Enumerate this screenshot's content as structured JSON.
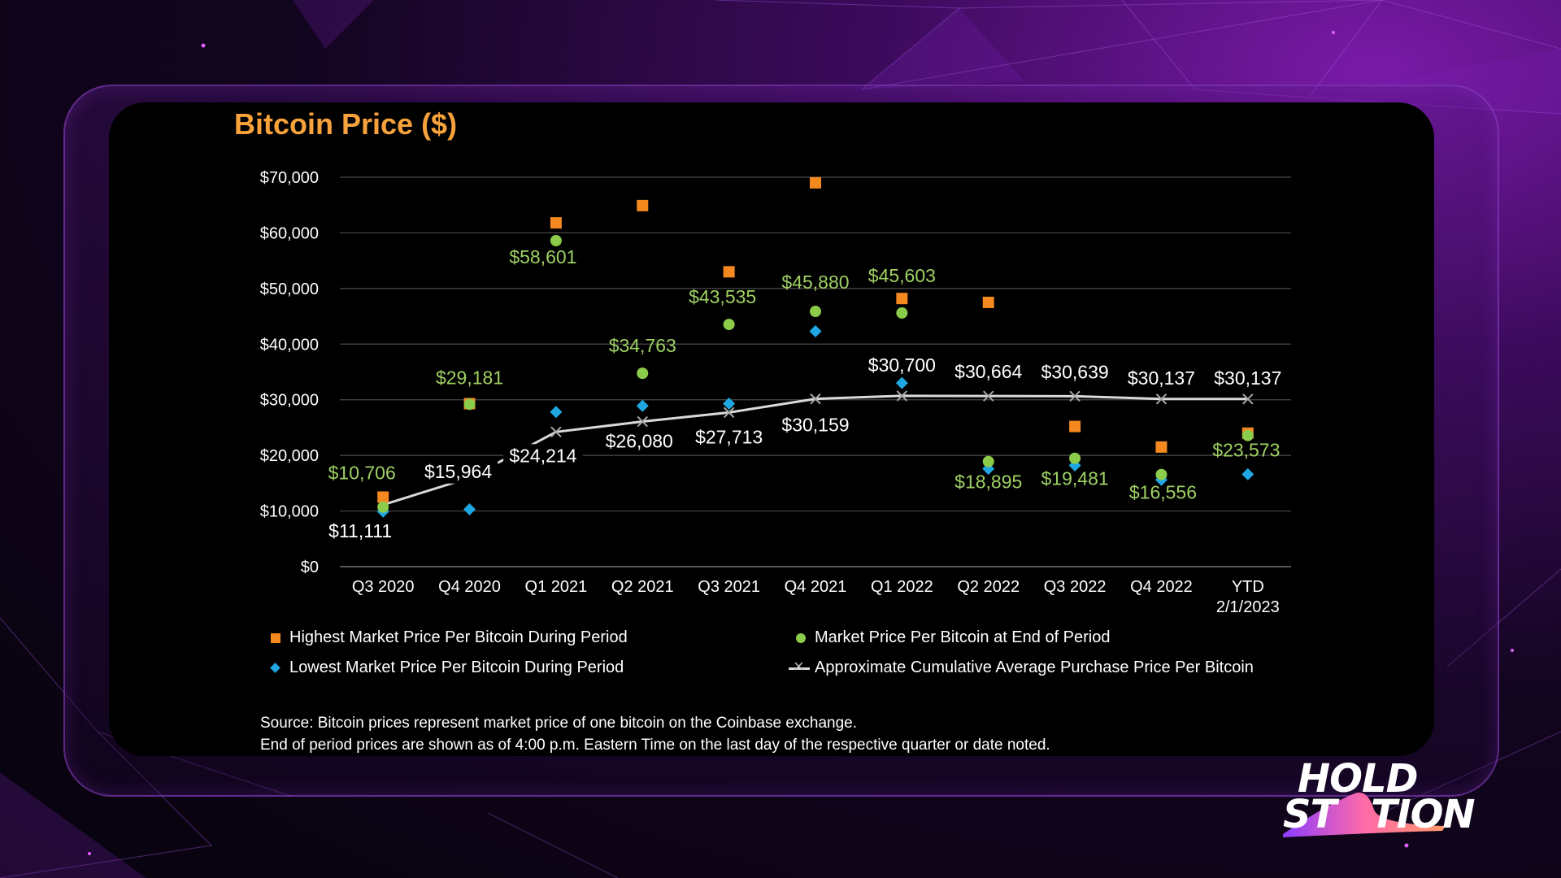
{
  "chart_data": {
    "type": "scatter",
    "title": "Bitcoin Price ($)",
    "categories": [
      "Q3 2020",
      "Q4 2020",
      "Q1 2021",
      "Q2 2021",
      "Q3 2021",
      "Q4 2021",
      "Q1 2022",
      "Q2 2022",
      "Q3 2022",
      "Q4 2022",
      "YTD 2/1/2023"
    ],
    "ylim": [
      0,
      70000
    ],
    "yticks": [
      "$0",
      "$10,000",
      "$20,000",
      "$30,000",
      "$40,000",
      "$50,000",
      "$60,000",
      "$70,000"
    ],
    "ytick_values": [
      0,
      10000,
      20000,
      30000,
      40000,
      50000,
      60000,
      70000
    ],
    "grid": true,
    "legend_position": "bottom",
    "series": [
      {
        "name": "Highest Market Price Per Bitcoin During Period",
        "marker": "square",
        "color": "#f4891f",
        "values": [
          12500,
          29300,
          61800,
          64900,
          53000,
          69000,
          48200,
          47500,
          25200,
          21500,
          24000
        ]
      },
      {
        "name": "Market Price Per Bitcoin at End of Period",
        "marker": "circle",
        "color": "#8ccc4b",
        "values": [
          10706,
          29181,
          58601,
          34763,
          43535,
          45880,
          45603,
          18895,
          19481,
          16556,
          23573
        ],
        "labels": [
          "$10,706",
          "$29,181",
          "$58,601",
          "$34,763",
          "$43,535",
          "$45,880",
          "$45,603",
          "$18,895",
          "$19,481",
          "$16,556",
          "$23,573"
        ]
      },
      {
        "name": "Lowest Market Price Per Bitcoin During Period",
        "marker": "diamond",
        "color": "#1fa7e3",
        "values": [
          9900,
          10300,
          27800,
          28900,
          29300,
          42300,
          33000,
          17600,
          18200,
          15600,
          16600
        ]
      },
      {
        "name": "Approximate Cumulative Average Purchase Price Per Bitcoin",
        "marker": "x-line",
        "color": "#d9d9d9",
        "values": [
          11111,
          15964,
          24214,
          26080,
          27713,
          30159,
          30700,
          30664,
          30639,
          30137,
          30137
        ],
        "labels": [
          "$11,111",
          "$15,964",
          "$24,214",
          "$26,080",
          "$27,713",
          "$30,159",
          "$30,700",
          "$30,664",
          "$30,639",
          "$30,137",
          "$30,137"
        ]
      }
    ]
  },
  "footnotes": [
    "Source: Bitcoin prices represent market price of one bitcoin on the Coinbase exchange.",
    "End of period prices are shown as of 4:00 p.m. Eastern Time on the last day of the respective quarter or date noted."
  ],
  "logo": {
    "line1": "HOLD",
    "line2": "ST",
    "line3": "TION"
  },
  "colors": {
    "title": "#f7a23b",
    "background": "#000000",
    "accent": "#8a2be2"
  }
}
